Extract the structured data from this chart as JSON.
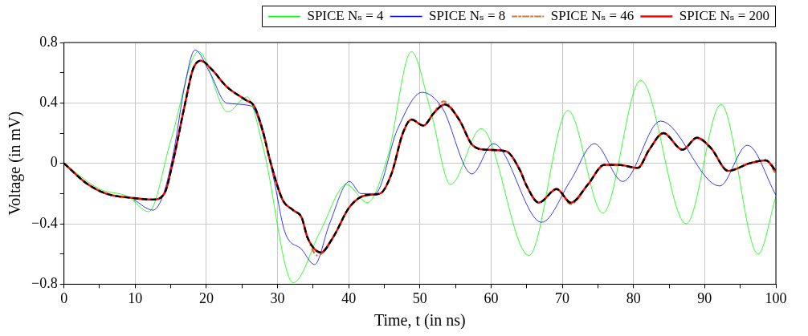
{
  "chart_data": {
    "type": "line",
    "xlabel": "Time, t (in ns)",
    "ylabel": "Voltage (in mV)",
    "xlim": [
      0,
      100
    ],
    "xticks": [
      0,
      {
        "value": 5,
        "label": null
      },
      10,
      {
        "value": 15,
        "label": null
      },
      20,
      {
        "value": 25,
        "label": null
      },
      30,
      {
        "value": 35,
        "label": null
      },
      40,
      {
        "value": 45,
        "label": null
      },
      50,
      {
        "value": 55,
        "label": null
      },
      60,
      {
        "value": 65,
        "label": null
      },
      70,
      {
        "value": 75,
        "label": null
      },
      80,
      {
        "value": 85,
        "label": null
      },
      90,
      {
        "value": 95,
        "label": null
      },
      100
    ],
    "ylim": [
      -0.8,
      0.8
    ],
    "yticks": [
      {
        "value": -0.8,
        "label": "−0.8"
      },
      {
        "value": -0.6,
        "label": null
      },
      {
        "value": -0.4,
        "label": "−0.4"
      },
      {
        "value": -0.2,
        "label": null
      },
      0,
      {
        "value": 0.2,
        "label": null
      },
      0.4,
      {
        "value": 0.6,
        "label": null
      },
      0.8
    ],
    "grid": true,
    "legend": "top",
    "marker": "none",
    "line_style": "solid",
    "series": [
      {
        "name": "SPICE Nₛ = 4",
        "color": "#00ff00",
        "x": [
          0,
          5,
          9,
          11.9,
          15,
          18.9,
          23,
          25.7,
          28,
          32.2,
          36,
          39.7,
          42.6,
          45.5,
          48.8,
          51.5,
          54.3,
          58.6,
          65.3,
          70.8,
          75.7,
          81,
          87.4,
          92.3,
          97.5,
          100
        ],
        "values": [
          0,
          -0.17,
          -0.22,
          -0.32,
          0.15,
          0.74,
          0.34,
          0.44,
          0.1,
          -0.79,
          -0.45,
          -0.14,
          -0.26,
          0.05,
          0.74,
          0.35,
          -0.14,
          0.23,
          -0.61,
          0.35,
          -0.33,
          0.55,
          -0.4,
          0.39,
          -0.6,
          -0.22
        ]
      },
      {
        "name": "SPICE Nₛ = 8",
        "color": "#0000ff",
        "x": [
          9.8,
          12.5,
          14,
          15.5,
          16.9,
          18.4,
          20.5,
          22.8,
          26.3,
          27.9,
          29.5,
          31,
          33.4,
          35.2,
          37.3,
          40.1,
          41.7,
          43.7,
          46.8,
          50.3,
          53.1,
          57.3,
          60.3,
          67.1,
          71.2,
          74.5,
          78.5,
          83.8,
          92.1,
          96,
          100
        ],
        "values": [
          -0.24,
          -0.31,
          -0.2,
          0.1,
          0.5,
          0.75,
          0.6,
          0.4,
          0.38,
          0.2,
          -0.11,
          -0.45,
          -0.57,
          -0.67,
          -0.4,
          -0.12,
          -0.2,
          -0.2,
          0.22,
          0.47,
          0.37,
          -0.07,
          0.13,
          -0.39,
          -0.11,
          0.13,
          -0.12,
          0.28,
          -0.15,
          0.12,
          -0.21
        ]
      },
      {
        "name": "SPICE Nₛ = 46",
        "color": "#cc7a3c",
        "line_style": "dashed",
        "x": [
          0,
          3.1,
          5.9,
          9.8,
          12.5,
          14.1,
          15.3,
          16.9,
          18.1,
          19.2,
          20.8,
          22.8,
          25.5,
          26.7,
          27.9,
          29,
          30.7,
          32.2,
          33.4,
          34.2,
          35.6,
          37.8,
          40.1,
          42.5,
          44.4,
          46,
          47.6,
          48.8,
          50.5,
          51.9,
          53.3,
          55.5,
          57.4,
          59.4,
          62.1,
          64.1,
          64.9,
          66.7,
          69.2,
          71.2,
          73.6,
          75.9,
          77.9,
          80.6,
          82.2,
          84.2,
          86.9,
          88.9,
          90.9,
          93.3,
          96.3,
          98.6,
          100
        ],
        "values": [
          0,
          -0.13,
          -0.2,
          -0.23,
          -0.24,
          -0.2,
          0.01,
          0.37,
          0.62,
          0.68,
          0.62,
          0.51,
          0.42,
          0.38,
          0.22,
          0.01,
          -0.24,
          -0.31,
          -0.36,
          -0.49,
          -0.61,
          -0.49,
          -0.29,
          -0.21,
          -0.2,
          -0.07,
          0.2,
          0.29,
          0.25,
          0.33,
          0.41,
          0.29,
          0.12,
          0.09,
          0.08,
          -0.05,
          -0.14,
          -0.26,
          -0.17,
          -0.27,
          -0.14,
          -0.01,
          -0.01,
          -0.03,
          0.09,
          0.2,
          0.09,
          0.17,
          0.1,
          -0.05,
          0,
          0.02,
          -0.07
        ]
      },
      {
        "name": "SPICE Nₛ = 200",
        "color": "#ff0000",
        "x": [
          0,
          3.1,
          5.9,
          9.8,
          12.5,
          14.1,
          15.3,
          16.9,
          18.1,
          19.2,
          20.8,
          22.8,
          25.5,
          26.7,
          27.9,
          29,
          30.7,
          32.2,
          33.4,
          34.2,
          36.1,
          37.8,
          40.1,
          42.5,
          44.4,
          46,
          47.6,
          48.8,
          50.5,
          51.9,
          53.5,
          55.5,
          57.4,
          59.4,
          62.1,
          64.1,
          64.9,
          66.7,
          69.2,
          71.2,
          73.6,
          75.9,
          77.9,
          80.6,
          82.2,
          84.2,
          86.9,
          88.9,
          90.9,
          93.3,
          96.3,
          98.6,
          100
        ],
        "values": [
          0,
          -0.13,
          -0.2,
          -0.23,
          -0.24,
          -0.2,
          0.01,
          0.37,
          0.62,
          0.68,
          0.62,
          0.51,
          0.42,
          0.38,
          0.22,
          0.01,
          -0.24,
          -0.31,
          -0.36,
          -0.49,
          -0.59,
          -0.49,
          -0.29,
          -0.21,
          -0.2,
          -0.07,
          0.2,
          0.29,
          0.25,
          0.33,
          0.39,
          0.29,
          0.12,
          0.09,
          0.08,
          -0.05,
          -0.14,
          -0.26,
          -0.17,
          -0.26,
          -0.14,
          -0.01,
          -0.01,
          -0.03,
          0.09,
          0.2,
          0.09,
          0.17,
          0.1,
          -0.05,
          0,
          0.02,
          -0.05
        ]
      },
      {
        "color": "#000000",
        "line_style": "dashed",
        "x": [
          0,
          3.1,
          5.9,
          9.8,
          12.5,
          14.1,
          15.3,
          16.9,
          18.1,
          19.2,
          20.8,
          22.8,
          25.5,
          26.7,
          27.9,
          29,
          30.7,
          32.2,
          33.4,
          34.2,
          36.1,
          37.8,
          40.1,
          42.5,
          44.4,
          46,
          47.6,
          48.8,
          50.5,
          51.9,
          53.5,
          55.5,
          57.4,
          59.4,
          62.1,
          64.1,
          64.9,
          66.7,
          69.2,
          71.2,
          73.6,
          75.9,
          77.9,
          80.6,
          82.2,
          84.2,
          86.9,
          88.9,
          90.9,
          93.3,
          96.3,
          98.6,
          100
        ],
        "values": [
          0,
          -0.13,
          -0.2,
          -0.23,
          -0.24,
          -0.2,
          0.01,
          0.37,
          0.62,
          0.68,
          0.62,
          0.51,
          0.42,
          0.38,
          0.22,
          0.01,
          -0.24,
          -0.31,
          -0.36,
          -0.49,
          -0.59,
          -0.49,
          -0.29,
          -0.21,
          -0.2,
          -0.07,
          0.2,
          0.29,
          0.25,
          0.33,
          0.39,
          0.29,
          0.12,
          0.09,
          0.08,
          -0.05,
          -0.14,
          -0.26,
          -0.17,
          -0.26,
          -0.14,
          -0.01,
          -0.01,
          -0.03,
          0.09,
          0.2,
          0.09,
          0.17,
          0.1,
          -0.05,
          0,
          0.02,
          -0.05
        ]
      }
    ]
  }
}
